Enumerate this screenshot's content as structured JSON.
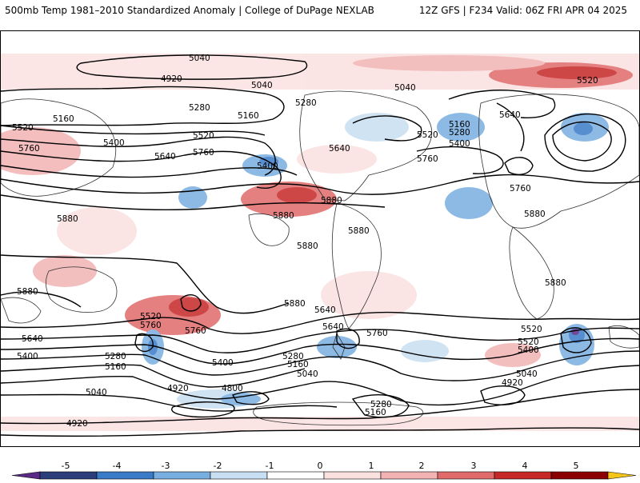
{
  "header": {
    "title_left": "500mb Temp 1981–2010 Standardized Anomaly | College of DuPage NEXLAB",
    "title_right": "12Z GFS | F234 Valid: 06Z FRI APR 04 2025"
  },
  "colorbar": {
    "ticks": [
      "-5",
      "-4",
      "-3",
      "-2",
      "-1",
      "0",
      "1",
      "2",
      "3",
      "4",
      "5"
    ],
    "colors": [
      "#5b2a86",
      "#2c3e7a",
      "#3a7bc8",
      "#79aee0",
      "#c8dff2",
      "#ffffff",
      "#fbe0e0",
      "#f2b3b3",
      "#e06a6a",
      "#c62828",
      "#8b0000",
      "#f5c518"
    ]
  },
  "contour_labels": [
    "5040",
    "4920",
    "5040",
    "5280",
    "5160",
    "5520",
    "5400",
    "5640",
    "5760",
    "5520",
    "5160",
    "5280",
    "5040",
    "5520",
    "5160",
    "5280",
    "5400",
    "5640",
    "5640",
    "5760",
    "5520",
    "5760",
    "5400",
    "5880",
    "5880",
    "5880",
    "5880",
    "5880",
    "5880",
    "5880",
    "5880",
    "5880",
    "5760",
    "5640",
    "5520",
    "5760",
    "5760",
    "5520",
    "5640",
    "5760",
    "5640",
    "5520",
    "5400",
    "5400",
    "5280",
    "5160",
    "5280",
    "5160",
    "5040",
    "5400",
    "5040",
    "4920",
    "4800",
    "5280",
    "5160",
    "5040",
    "4920",
    "4920"
  ]
}
